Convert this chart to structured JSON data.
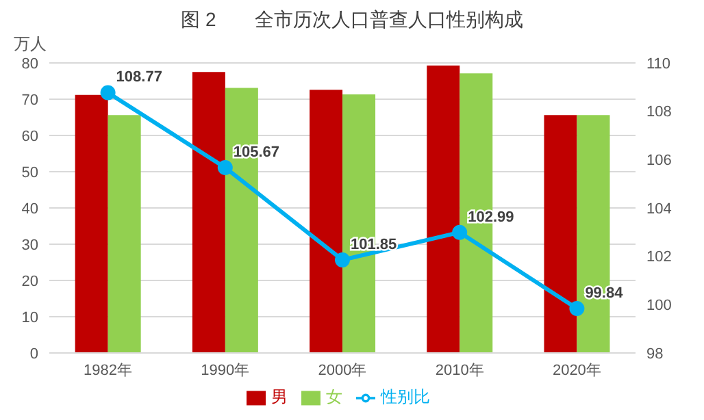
{
  "chart_data": {
    "type": "bar",
    "title": "图 2　　全市历次人口普查人口性别构成",
    "ylabel": "万人",
    "categories": [
      "1982年",
      "1990年",
      "2000年",
      "2010年",
      "2020年"
    ],
    "series": [
      {
        "name": "男",
        "color": "#c00000",
        "values": [
          71.2,
          77.5,
          72.6,
          79.3,
          65.6
        ]
      },
      {
        "name": "女",
        "color": "#92d050",
        "values": [
          65.6,
          73.1,
          71.3,
          77.1,
          65.6
        ]
      },
      {
        "name": "性别比",
        "type": "line",
        "axis": "y2",
        "color": "#00b0f0",
        "marker": "circle",
        "data_labels": true,
        "values": [
          108.77,
          105.67,
          101.85,
          102.99,
          99.84
        ]
      }
    ],
    "ylim": [
      0,
      80
    ],
    "yticks": [
      0,
      10,
      20,
      30,
      40,
      50,
      60,
      70,
      80
    ],
    "y2lim": [
      98,
      110
    ],
    "y2ticks": [
      98,
      100,
      102,
      104,
      106,
      108,
      110
    ],
    "grid": "y",
    "legend": "bottom"
  }
}
